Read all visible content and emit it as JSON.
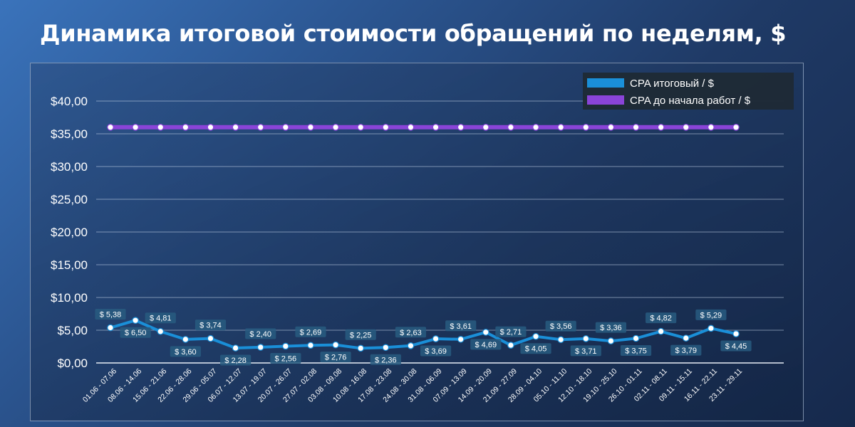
{
  "title": "Динамика итоговой стоимости обращений по неделям, $",
  "chart_data": {
    "type": "line",
    "categories": [
      "01.06 - 07.06",
      "08.06 - 14.06",
      "15.06 - 21.06",
      "22.06 - 28.06",
      "29.06 - 05.07",
      "06.07 - 12.07",
      "13.07 - 19.07",
      "20.07 - 26.07",
      "27.07 - 02.08",
      "03.08 - 09.08",
      "10.08 - 16.08",
      "17.08 - 23.08",
      "24.08 - 30.08",
      "31.08 - 06.09",
      "07.09 - 13.09",
      "14.09 - 20.09",
      "21.09 - 27.09",
      "28.09 - 04.10",
      "05.10 - 11.10",
      "12.10 - 18.10",
      "19.10 - 25.10",
      "26.10 - 01.11",
      "02.11 - 08.11",
      "09.11 - 15.11",
      "16.11 - 22.11",
      "23.11 - 29.11"
    ],
    "series": [
      {
        "name": "CPA итоговый / $",
        "color": "#1a8fd8",
        "values": [
          5.38,
          6.5,
          4.81,
          3.6,
          3.74,
          2.28,
          2.4,
          2.56,
          2.69,
          2.76,
          2.25,
          2.36,
          2.63,
          3.69,
          3.61,
          4.69,
          2.71,
          4.05,
          3.56,
          3.71,
          3.36,
          3.75,
          4.82,
          3.79,
          5.29,
          4.45
        ],
        "labels": [
          "$ 5,38",
          "$ 6,50",
          "$ 4,81",
          "$ 3,60",
          "$ 3,74",
          "$ 2,28",
          "$ 2,40",
          "$ 2,56",
          "$ 2,69",
          "$ 2,76",
          "$ 2,25",
          "$ 2,36",
          "$ 2,63",
          "$ 3,69",
          "$ 3,61",
          "$ 4,69",
          "$ 2,71",
          "$ 4,05",
          "$ 3,56",
          "$ 3,71",
          "$ 3,36",
          "$ 3,75",
          "$ 4,82",
          "$ 3,79",
          "$ 5,29",
          "$ 4,45"
        ]
      },
      {
        "name": "CPA до начала работ / $",
        "color": "#8a44d8",
        "values": [
          36,
          36,
          36,
          36,
          36,
          36,
          36,
          36,
          36,
          36,
          36,
          36,
          36,
          36,
          36,
          36,
          36,
          36,
          36,
          36,
          36,
          36,
          36,
          36,
          36,
          36
        ]
      }
    ],
    "yticks": [
      "$0,00",
      "$5,00",
      "$10,00",
      "$15,00",
      "$20,00",
      "$25,00",
      "$30,00",
      "$35,00",
      "$40,00"
    ],
    "ylim": [
      0,
      40
    ],
    "grid": true,
    "legend": "top-right"
  }
}
